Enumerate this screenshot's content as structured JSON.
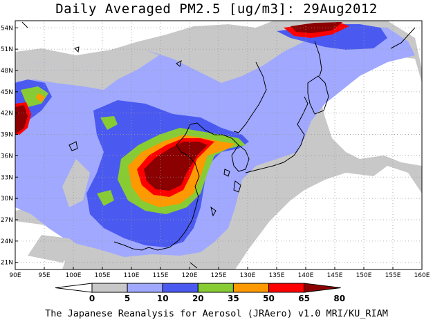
{
  "title": "Daily Averaged PM2.5 [ug/m3]: 29Aug2012",
  "footer": "The Japanese Reanalysis for Aerosol (JRAero) v1.0 MRI/KU_RIAM",
  "map": {
    "lon_range": [
      90,
      160
    ],
    "lat_range": [
      20,
      55
    ],
    "lon_ticks": [
      "90E",
      "95E",
      "100E",
      "105E",
      "110E",
      "115E",
      "120E",
      "125E",
      "130E",
      "135E",
      "140E",
      "145E",
      "150E",
      "155E",
      "160E"
    ],
    "lat_ticks": [
      "21N",
      "24N",
      "27N",
      "30N",
      "33N",
      "36N",
      "39N",
      "42N",
      "45N",
      "48N",
      "51N",
      "54N"
    ],
    "grid": true
  },
  "colorbar": {
    "levels": [
      "0",
      "5",
      "10",
      "20",
      "35",
      "50",
      "65",
      "80"
    ],
    "colors": [
      "#ffffff",
      "#c8c8c8",
      "#a0a8ff",
      "#4a5af0",
      "#88cc33",
      "#ff9900",
      "#ff0000",
      "#8b0000"
    ]
  }
}
